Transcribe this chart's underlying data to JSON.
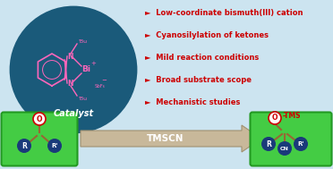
{
  "bg_color": "#cce4f0",
  "bullet_points": [
    "Low-coordinate bismuth(III) cation",
    "Cyanosilylation of ketones",
    "Mild reaction conditions",
    "Broad substrate scope",
    "Mechanistic studies"
  ],
  "bullet_color": "#cc0000",
  "bullet_marker": "►",
  "bullet_fontsize": 6.0,
  "catalyst_circle_color": "#1a5a7a",
  "catalyst_text": "Catalyst",
  "arrow_color": "#c8b89a",
  "arrow_edge_color": "#a09070",
  "arrow_text": "TMSCN",
  "arrow_text_color": "#ffffff",
  "arrow_text_fontsize": 7.5,
  "green_box_color": "#44cc44",
  "green_box_edge": "#229922",
  "bond_color": "#996633",
  "pink_struct_color": "#ff66bb",
  "atom_blue": "#1a3a7a",
  "atom_o_edge": "#cc0000",
  "tms_color": "#cc0000"
}
